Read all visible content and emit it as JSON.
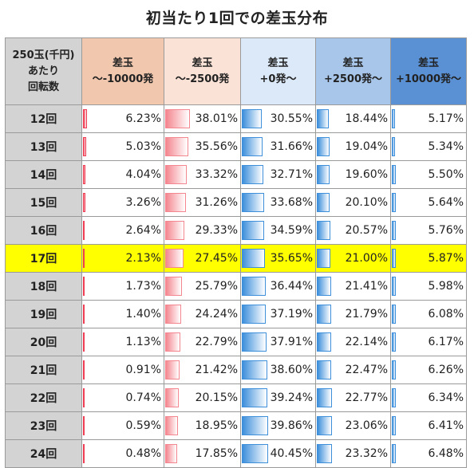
{
  "title": "初当たり1回での差玉分布",
  "header": {
    "row_header": [
      "250玉(千円)",
      "あたり",
      "回転数"
    ],
    "columns": [
      {
        "line1": "差玉",
        "line2": "～-10000発",
        "bg": "#f1c7ae",
        "bar": "#ee3c52"
      },
      {
        "line1": "差玉",
        "line2": "～-2500発",
        "bg": "#fbe2d6",
        "bar": "#f4868f"
      },
      {
        "line1": "差玉",
        "line2": "+0発～",
        "bg": "#dce9f8",
        "bar": "#3d8fdb"
      },
      {
        "line1": "差玉",
        "line2": "+2500発～",
        "bg": "#a7c6ea",
        "bar": "#3d8fdb"
      },
      {
        "line1": "差玉",
        "line2": "+10000発～",
        "bg": "#5a91d5",
        "bar": "#3d8fdb"
      }
    ]
  },
  "highlight_color": "#ffff00",
  "rows": [
    {
      "spins": "12回",
      "cells": [
        "6.23%",
        "38.01%",
        "30.55%",
        "18.44%",
        "5.17%"
      ],
      "values": [
        6.23,
        38.01,
        30.55,
        18.44,
        5.17
      ]
    },
    {
      "spins": "13回",
      "cells": [
        "5.03%",
        "35.56%",
        "31.66%",
        "19.04%",
        "5.34%"
      ],
      "values": [
        5.03,
        35.56,
        31.66,
        19.04,
        5.34
      ]
    },
    {
      "spins": "14回",
      "cells": [
        "4.04%",
        "33.32%",
        "32.71%",
        "19.60%",
        "5.50%"
      ],
      "values": [
        4.04,
        33.32,
        32.71,
        19.6,
        5.5
      ]
    },
    {
      "spins": "15回",
      "cells": [
        "3.26%",
        "31.26%",
        "33.68%",
        "20.10%",
        "5.64%"
      ],
      "values": [
        3.26,
        31.26,
        33.68,
        20.1,
        5.64
      ]
    },
    {
      "spins": "16回",
      "cells": [
        "2.64%",
        "29.33%",
        "34.59%",
        "20.57%",
        "5.76%"
      ],
      "values": [
        2.64,
        29.33,
        34.59,
        20.57,
        5.76
      ]
    },
    {
      "spins": "17回",
      "cells": [
        "2.13%",
        "27.45%",
        "35.65%",
        "21.00%",
        "5.87%"
      ],
      "values": [
        2.13,
        27.45,
        35.65,
        21.0,
        5.87
      ],
      "highlight": true
    },
    {
      "spins": "18回",
      "cells": [
        "1.73%",
        "25.79%",
        "36.44%",
        "21.41%",
        "5.98%"
      ],
      "values": [
        1.73,
        25.79,
        36.44,
        21.41,
        5.98
      ]
    },
    {
      "spins": "19回",
      "cells": [
        "1.40%",
        "24.24%",
        "37.19%",
        "21.79%",
        "6.08%"
      ],
      "values": [
        1.4,
        24.24,
        37.19,
        21.79,
        6.08
      ]
    },
    {
      "spins": "20回",
      "cells": [
        "1.13%",
        "22.79%",
        "37.91%",
        "22.14%",
        "6.17%"
      ],
      "values": [
        1.13,
        22.79,
        37.91,
        22.14,
        6.17
      ]
    },
    {
      "spins": "21回",
      "cells": [
        "0.91%",
        "21.42%",
        "38.60%",
        "22.47%",
        "6.26%"
      ],
      "values": [
        0.91,
        21.42,
        38.6,
        22.47,
        6.26
      ]
    },
    {
      "spins": "22回",
      "cells": [
        "0.74%",
        "20.15%",
        "39.24%",
        "22.77%",
        "6.34%"
      ],
      "values": [
        0.74,
        20.15,
        39.24,
        22.77,
        6.34
      ]
    },
    {
      "spins": "23回",
      "cells": [
        "0.59%",
        "18.95%",
        "39.86%",
        "23.06%",
        "6.41%"
      ],
      "values": [
        0.59,
        18.95,
        39.86,
        23.06,
        6.41
      ]
    },
    {
      "spins": "24回",
      "cells": [
        "0.48%",
        "17.85%",
        "40.45%",
        "23.32%",
        "6.48%"
      ],
      "values": [
        0.48,
        17.85,
        40.45,
        23.32,
        6.48
      ]
    }
  ]
}
